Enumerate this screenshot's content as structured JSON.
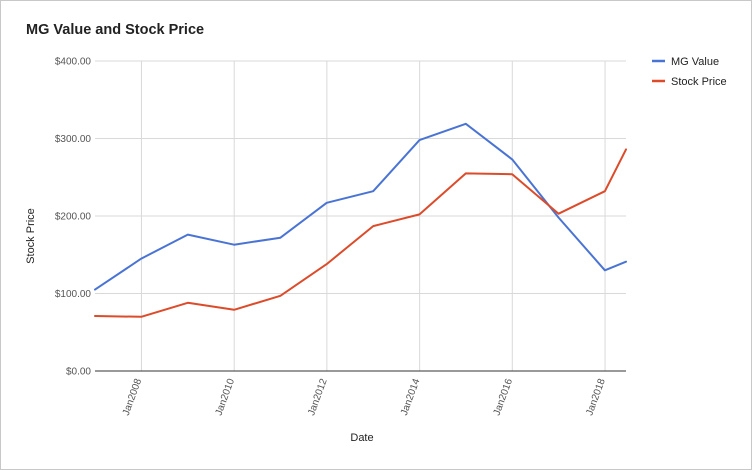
{
  "chart_data": {
    "type": "line",
    "title": "MG Value and Stock Price",
    "xlabel": "Date",
    "ylabel": "Stock Price",
    "ylim": [
      0,
      400
    ],
    "y_ticks": [
      "$0.00",
      "$100.00",
      "$200.00",
      "$300.00",
      "$400.00"
    ],
    "x_ticks": [
      "Jan2008",
      "Jan2010",
      "Jan2012",
      "Jan2014",
      "Jan2016",
      "Jan2018"
    ],
    "grid": true,
    "legend_position": "right",
    "x": [
      "2006-12-31",
      "2007-12-31",
      "2008-12-31",
      "2009-12-31",
      "2010-12-31",
      "2011-12-31",
      "2012-12-31",
      "2013-12-31",
      "2014-12-31",
      "2015-12-31",
      "2016-12-31",
      "2017-12-31",
      "2018-06-15"
    ],
    "series": [
      {
        "name": "MG Value",
        "color": "#4a74d4",
        "values": [
          105,
          145,
          176,
          163,
          172,
          217,
          232,
          298,
          319,
          273,
          198,
          130,
          141
        ]
      },
      {
        "name": "Stock Price",
        "color": "#dc4b2a",
        "values": [
          71,
          70,
          88,
          79,
          97,
          138,
          187,
          202,
          255,
          254,
          203,
          232,
          286
        ]
      }
    ]
  }
}
